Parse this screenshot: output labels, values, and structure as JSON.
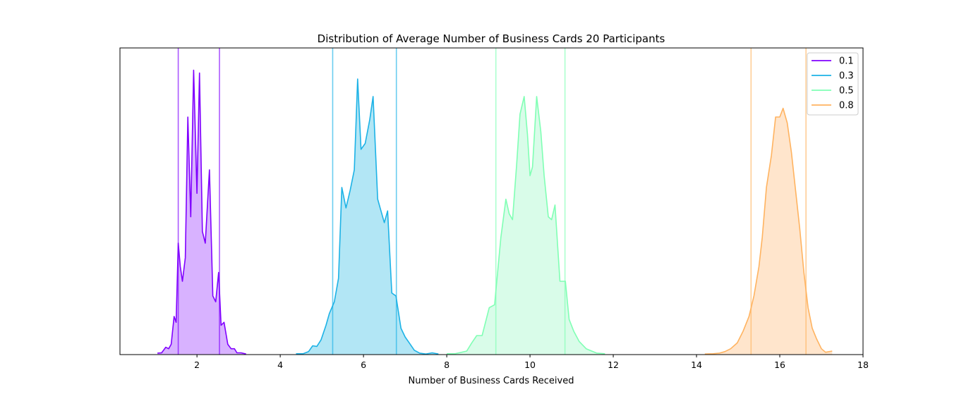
{
  "chart_data": {
    "type": "area",
    "title": "Distribution of Average Number of Business Cards 20 Participants",
    "xlabel": "Number of Business Cards Received",
    "ylabel": "",
    "xlim": [
      0.15,
      18.0
    ],
    "ylim": [
      0,
      1.0
    ],
    "xticks": [
      2,
      4,
      6,
      8,
      10,
      12,
      14,
      16,
      18
    ],
    "y_axis_ticks_shown": false,
    "grid": false,
    "legend": {
      "location": "top-right"
    },
    "series": [
      {
        "name": "0.1",
        "color": "#8000ff",
        "fill_color": "#d8b2ff",
        "vlines": [
          1.55,
          2.54
        ],
        "points": [
          [
            1.05,
            0.005
          ],
          [
            1.15,
            0.006
          ],
          [
            1.25,
            0.025
          ],
          [
            1.32,
            0.02
          ],
          [
            1.38,
            0.035
          ],
          [
            1.45,
            0.13
          ],
          [
            1.5,
            0.11
          ],
          [
            1.55,
            0.38
          ],
          [
            1.6,
            0.3
          ],
          [
            1.65,
            0.25
          ],
          [
            1.72,
            0.33
          ],
          [
            1.78,
            0.81
          ],
          [
            1.85,
            0.47
          ],
          [
            1.92,
            0.97
          ],
          [
            2.0,
            0.55
          ],
          [
            2.06,
            0.96
          ],
          [
            2.13,
            0.42
          ],
          [
            2.2,
            0.38
          ],
          [
            2.3,
            0.63
          ],
          [
            2.38,
            0.2
          ],
          [
            2.45,
            0.18
          ],
          [
            2.52,
            0.28
          ],
          [
            2.58,
            0.1
          ],
          [
            2.65,
            0.11
          ],
          [
            2.74,
            0.035
          ],
          [
            2.82,
            0.02
          ],
          [
            2.9,
            0.02
          ],
          [
            2.96,
            0.006
          ],
          [
            3.06,
            0.006
          ],
          [
            3.18,
            0.002
          ]
        ]
      },
      {
        "name": "0.3",
        "color": "#1cb2e6",
        "fill_color": "#b2e6f5",
        "vlines": [
          5.26,
          6.79
        ],
        "points": [
          [
            4.38,
            0.003
          ],
          [
            4.55,
            0.003
          ],
          [
            4.68,
            0.01
          ],
          [
            4.78,
            0.03
          ],
          [
            4.88,
            0.028
          ],
          [
            4.98,
            0.05
          ],
          [
            5.1,
            0.1
          ],
          [
            5.18,
            0.14
          ],
          [
            5.3,
            0.18
          ],
          [
            5.4,
            0.26
          ],
          [
            5.48,
            0.57
          ],
          [
            5.58,
            0.5
          ],
          [
            5.68,
            0.56
          ],
          [
            5.78,
            0.63
          ],
          [
            5.86,
            0.94
          ],
          [
            5.94,
            0.7
          ],
          [
            6.04,
            0.72
          ],
          [
            6.15,
            0.8
          ],
          [
            6.23,
            0.88
          ],
          [
            6.34,
            0.53
          ],
          [
            6.42,
            0.49
          ],
          [
            6.5,
            0.45
          ],
          [
            6.58,
            0.49
          ],
          [
            6.68,
            0.21
          ],
          [
            6.78,
            0.2
          ],
          [
            6.9,
            0.09
          ],
          [
            7.0,
            0.06
          ],
          [
            7.1,
            0.04
          ],
          [
            7.22,
            0.015
          ],
          [
            7.35,
            0.005
          ],
          [
            7.5,
            0.002
          ],
          [
            7.65,
            0.006
          ],
          [
            7.8,
            0.002
          ]
        ]
      },
      {
        "name": "0.5",
        "color": "#80ffb4",
        "fill_color": "#d9fce9",
        "vlines": [
          9.18,
          10.84
        ],
        "points": [
          [
            8.0,
            0.003
          ],
          [
            8.2,
            0.003
          ],
          [
            8.48,
            0.012
          ],
          [
            8.6,
            0.04
          ],
          [
            8.72,
            0.065
          ],
          [
            8.85,
            0.065
          ],
          [
            9.02,
            0.16
          ],
          [
            9.15,
            0.17
          ],
          [
            9.3,
            0.4
          ],
          [
            9.42,
            0.53
          ],
          [
            9.5,
            0.48
          ],
          [
            9.58,
            0.46
          ],
          [
            9.68,
            0.65
          ],
          [
            9.76,
            0.82
          ],
          [
            9.86,
            0.88
          ],
          [
            9.94,
            0.75
          ],
          [
            10.0,
            0.61
          ],
          [
            10.06,
            0.64
          ],
          [
            10.16,
            0.88
          ],
          [
            10.26,
            0.76
          ],
          [
            10.34,
            0.61
          ],
          [
            10.44,
            0.47
          ],
          [
            10.52,
            0.46
          ],
          [
            10.6,
            0.51
          ],
          [
            10.72,
            0.25
          ],
          [
            10.85,
            0.25
          ],
          [
            10.94,
            0.12
          ],
          [
            11.05,
            0.08
          ],
          [
            11.18,
            0.045
          ],
          [
            11.35,
            0.02
          ],
          [
            11.6,
            0.005
          ],
          [
            11.8,
            0.003
          ]
        ]
      },
      {
        "name": "0.8",
        "color": "#ffb360",
        "fill_color": "#ffe5cc",
        "vlines": [
          15.31,
          16.63
        ],
        "points": [
          [
            14.2,
            0.002
          ],
          [
            14.4,
            0.003
          ],
          [
            14.55,
            0.005
          ],
          [
            14.68,
            0.01
          ],
          [
            14.82,
            0.02
          ],
          [
            14.98,
            0.04
          ],
          [
            15.12,
            0.08
          ],
          [
            15.26,
            0.13
          ],
          [
            15.38,
            0.2
          ],
          [
            15.5,
            0.3
          ],
          [
            15.58,
            0.4
          ],
          [
            15.68,
            0.57
          ],
          [
            15.8,
            0.68
          ],
          [
            15.9,
            0.81
          ],
          [
            16.0,
            0.81
          ],
          [
            16.08,
            0.84
          ],
          [
            16.18,
            0.79
          ],
          [
            16.28,
            0.69
          ],
          [
            16.38,
            0.56
          ],
          [
            16.48,
            0.43
          ],
          [
            16.58,
            0.28
          ],
          [
            16.68,
            0.16
          ],
          [
            16.78,
            0.09
          ],
          [
            16.88,
            0.055
          ],
          [
            17.0,
            0.02
          ],
          [
            17.1,
            0.008
          ],
          [
            17.26,
            0.012
          ]
        ]
      }
    ]
  }
}
